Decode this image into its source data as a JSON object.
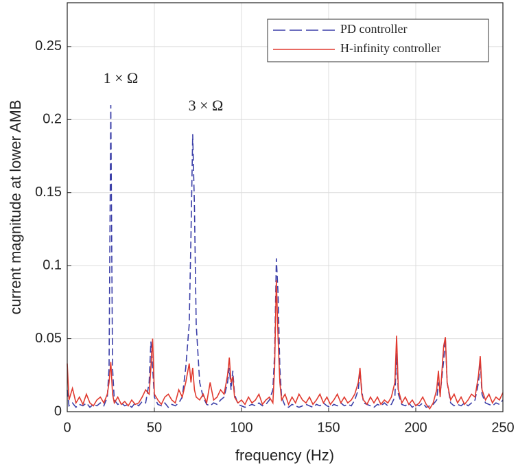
{
  "chart_data": {
    "type": "line",
    "xlabel": "frequency (Hz)",
    "ylabel": "current magnitude at lower AMB",
    "annotations": [
      "1 × Ω",
      "3 × Ω"
    ],
    "x": [
      0,
      1,
      3,
      5,
      7,
      9,
      11,
      13,
      15,
      17,
      19,
      21,
      23,
      24,
      25,
      26,
      27,
      29,
      31,
      33,
      35,
      37,
      39,
      41,
      43,
      45,
      47,
      48,
      49,
      50,
      52,
      54,
      56,
      58,
      60,
      62,
      64,
      66,
      68,
      70,
      71,
      72,
      73,
      74,
      76,
      78,
      80,
      82,
      84,
      86,
      88,
      90,
      92,
      93,
      94,
      95,
      96,
      98,
      100,
      102,
      104,
      106,
      108,
      110,
      112,
      114,
      116,
      118,
      119,
      120,
      121,
      122,
      123,
      125,
      127,
      129,
      131,
      133,
      135,
      137,
      139,
      141,
      143,
      145,
      147,
      149,
      151,
      153,
      155,
      157,
      159,
      161,
      163,
      165,
      167,
      168,
      169,
      170,
      172,
      174,
      176,
      178,
      180,
      182,
      184,
      186,
      188,
      189,
      190,
      192,
      194,
      196,
      198,
      200,
      202,
      204,
      206,
      208,
      210,
      212,
      213,
      214,
      216,
      217,
      218,
      220,
      222,
      224,
      226,
      228,
      230,
      232,
      234,
      236,
      237,
      238,
      240,
      242,
      244,
      246,
      248,
      250
    ],
    "series": [
      {
        "name": "PD controller",
        "color": "#3b3fa8",
        "linestyle": "dashed",
        "values": [
          0.015,
          0.004,
          0.006,
          0.003,
          0.005,
          0.004,
          0.006,
          0.003,
          0.005,
          0.004,
          0.006,
          0.004,
          0.01,
          0.03,
          0.21,
          0.03,
          0.008,
          0.005,
          0.006,
          0.004,
          0.005,
          0.003,
          0.006,
          0.004,
          0.007,
          0.006,
          0.02,
          0.048,
          0.03,
          0.01,
          0.005,
          0.004,
          0.006,
          0.003,
          0.005,
          0.004,
          0.006,
          0.01,
          0.03,
          0.06,
          0.12,
          0.19,
          0.14,
          0.06,
          0.02,
          0.01,
          0.005,
          0.004,
          0.006,
          0.005,
          0.008,
          0.01,
          0.02,
          0.03,
          0.015,
          0.028,
          0.012,
          0.005,
          0.004,
          0.003,
          0.004,
          0.005,
          0.004,
          0.006,
          0.004,
          0.005,
          0.008,
          0.015,
          0.04,
          0.105,
          0.08,
          0.03,
          0.01,
          0.004,
          0.003,
          0.005,
          0.004,
          0.003,
          0.004,
          0.005,
          0.004,
          0.003,
          0.005,
          0.004,
          0.006,
          0.004,
          0.003,
          0.005,
          0.004,
          0.006,
          0.004,
          0.005,
          0.004,
          0.008,
          0.015,
          0.028,
          0.015,
          0.006,
          0.005,
          0.004,
          0.003,
          0.005,
          0.004,
          0.006,
          0.004,
          0.005,
          0.01,
          0.04,
          0.012,
          0.005,
          0.004,
          0.006,
          0.003,
          0.005,
          0.004,
          0.006,
          0.003,
          0.004,
          0.005,
          0.008,
          0.02,
          0.012,
          0.035,
          0.05,
          0.02,
          0.006,
          0.004,
          0.005,
          0.004,
          0.006,
          0.004,
          0.006,
          0.008,
          0.02,
          0.035,
          0.012,
          0.006,
          0.005,
          0.004,
          0.006,
          0.005,
          0.008
        ]
      },
      {
        "name": "H-infinity controller",
        "color": "#e0392e",
        "linestyle": "solid",
        "values": [
          0.033,
          0.008,
          0.016,
          0.006,
          0.01,
          0.005,
          0.012,
          0.006,
          0.004,
          0.008,
          0.01,
          0.006,
          0.012,
          0.02,
          0.034,
          0.012,
          0.006,
          0.01,
          0.005,
          0.007,
          0.004,
          0.008,
          0.005,
          0.006,
          0.01,
          0.015,
          0.012,
          0.03,
          0.05,
          0.012,
          0.008,
          0.005,
          0.01,
          0.012,
          0.008,
          0.006,
          0.015,
          0.01,
          0.02,
          0.033,
          0.02,
          0.03,
          0.015,
          0.01,
          0.008,
          0.012,
          0.006,
          0.02,
          0.008,
          0.01,
          0.015,
          0.012,
          0.025,
          0.037,
          0.02,
          0.024,
          0.01,
          0.006,
          0.008,
          0.005,
          0.01,
          0.006,
          0.008,
          0.012,
          0.005,
          0.008,
          0.01,
          0.006,
          0.03,
          0.09,
          0.05,
          0.02,
          0.008,
          0.012,
          0.005,
          0.01,
          0.006,
          0.012,
          0.008,
          0.006,
          0.01,
          0.005,
          0.008,
          0.012,
          0.006,
          0.01,
          0.005,
          0.008,
          0.012,
          0.006,
          0.01,
          0.006,
          0.008,
          0.012,
          0.02,
          0.03,
          0.012,
          0.008,
          0.005,
          0.01,
          0.006,
          0.01,
          0.005,
          0.008,
          0.006,
          0.01,
          0.02,
          0.052,
          0.015,
          0.006,
          0.01,
          0.005,
          0.008,
          0.004,
          0.006,
          0.01,
          0.005,
          0.002,
          0.006,
          0.015,
          0.028,
          0.01,
          0.045,
          0.051,
          0.02,
          0.008,
          0.012,
          0.006,
          0.01,
          0.005,
          0.008,
          0.012,
          0.01,
          0.025,
          0.038,
          0.015,
          0.008,
          0.012,
          0.006,
          0.01,
          0.008,
          0.013
        ]
      }
    ],
    "xlim": [
      0,
      250
    ],
    "xticks": [
      0,
      50,
      100,
      150,
      200,
      250
    ],
    "ylim": [
      0,
      0.28
    ],
    "yticks": [
      0,
      0.05,
      0.1,
      0.15,
      0.2,
      0.25
    ],
    "grid": true,
    "legend": "upper right"
  }
}
